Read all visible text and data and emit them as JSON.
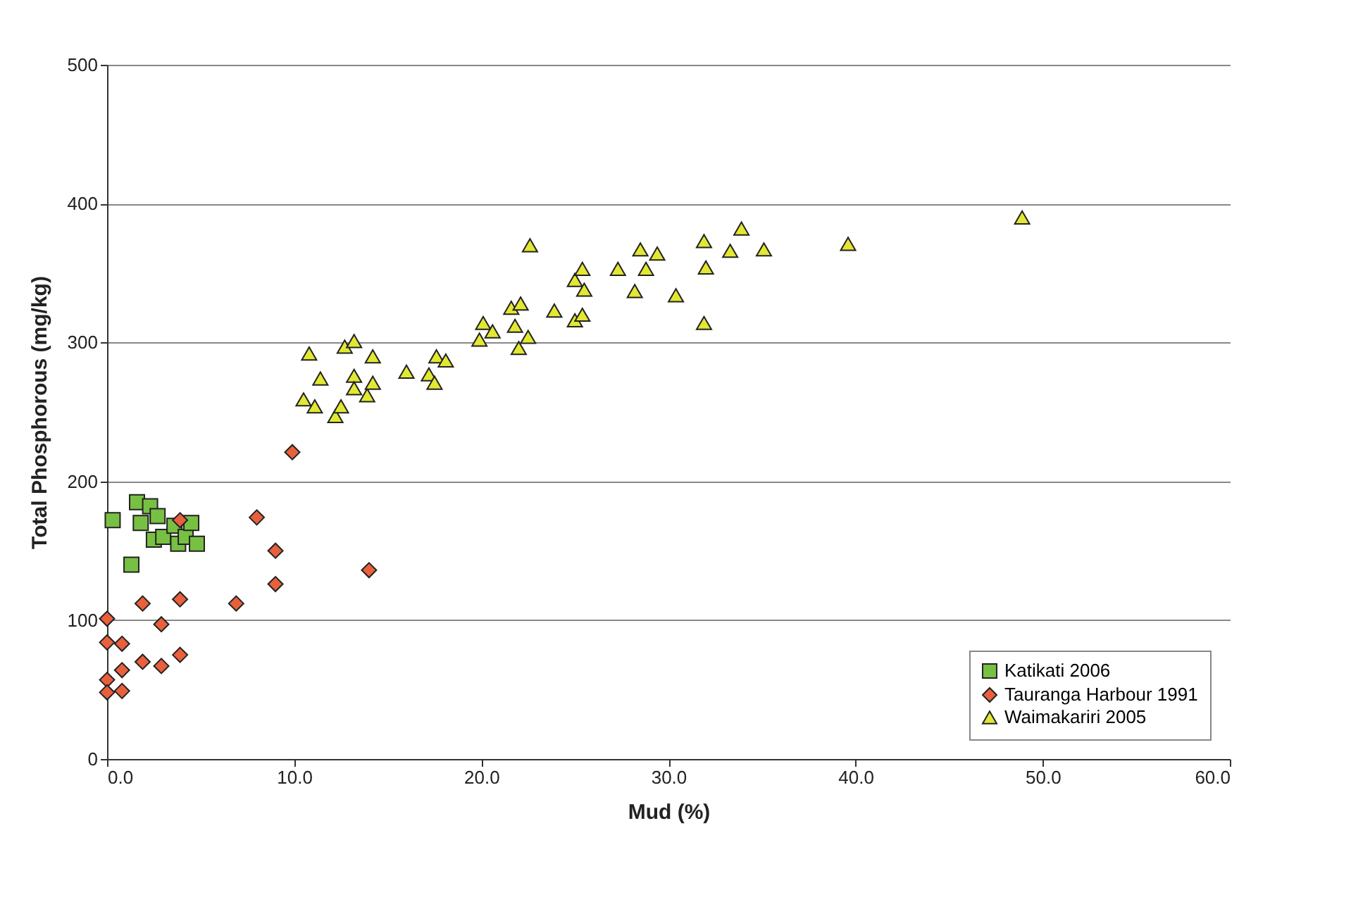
{
  "chart_data": {
    "type": "scatter",
    "xlabel": "Mud (%)",
    "ylabel": "Total Phosphorous (mg/kg)",
    "xlim": [
      0,
      60
    ],
    "xticks": [
      {
        "value": 0,
        "label": "0.0"
      },
      {
        "value": 10,
        "label": "10.0"
      },
      {
        "value": 20,
        "label": "20.0"
      },
      {
        "value": 30,
        "label": "30.0"
      },
      {
        "value": 40,
        "label": "40.0"
      },
      {
        "value": 50,
        "label": "50.0"
      },
      {
        "value": 60,
        "label": "60.0"
      }
    ],
    "ylim": [
      0,
      500
    ],
    "yticks": [
      0,
      100,
      200,
      300,
      400,
      500
    ],
    "grid": "y",
    "legend": "bottom right",
    "series": [
      {
        "name": "Katikati 2006",
        "color": "#78c043",
        "marker": "square",
        "x": [
          0.3,
          1.3,
          1.6,
          1.8,
          2.3,
          2.5,
          2.7,
          3.0,
          3.6,
          3.8,
          4.2,
          4.5,
          4.8
        ],
        "values": [
          172,
          140,
          185,
          170,
          182,
          158,
          175,
          160,
          168,
          155,
          160,
          170,
          155
        ]
      },
      {
        "name": "Tauranga Harbour 1991",
        "color": "#e8603c",
        "marker": "diamond",
        "x": [
          3.9,
          8.0,
          9.0,
          9.0,
          14.0,
          1.9,
          3.9,
          6.9,
          0,
          2.9,
          0,
          0.8,
          1.9,
          2.9,
          3.9,
          0.8,
          0,
          0,
          0.8,
          9.9
        ],
        "values": [
          172,
          174,
          150,
          126,
          136,
          112,
          115,
          112,
          101,
          97,
          84,
          83,
          70,
          67,
          75,
          64,
          57,
          48,
          49,
          221
        ]
      },
      {
        "name": "Waimakariri 2005",
        "color": "#e2e832",
        "marker": "triangle",
        "x": [
          10.8,
          11.4,
          10.5,
          11.1,
          12.2,
          12.5,
          12.7,
          13.2,
          13.2,
          13.2,
          13.9,
          14.2,
          14.2,
          16.0,
          17.2,
          17.5,
          17.6,
          18.1,
          19.9,
          20.1,
          20.6,
          21.6,
          21.8,
          22.1,
          22.0,
          22.5,
          22.6,
          23.9,
          25.0,
          25.4,
          25.5,
          25.0,
          25.4,
          27.3,
          28.5,
          29.4,
          28.8,
          28.2,
          30.4,
          31.9,
          32.0,
          31.9,
          33.3,
          33.9,
          35.1,
          39.6,
          48.9
        ],
        "values": [
          292,
          274,
          259,
          254,
          247,
          254,
          297,
          301,
          276,
          267,
          262,
          271,
          290,
          279,
          277,
          271,
          290,
          287,
          302,
          314,
          308,
          325,
          312,
          328,
          296,
          304,
          370,
          323,
          345,
          353,
          338,
          316,
          320,
          353,
          367,
          364,
          353,
          337,
          334,
          373,
          354,
          314,
          366,
          382,
          367,
          371,
          390
        ]
      }
    ]
  }
}
